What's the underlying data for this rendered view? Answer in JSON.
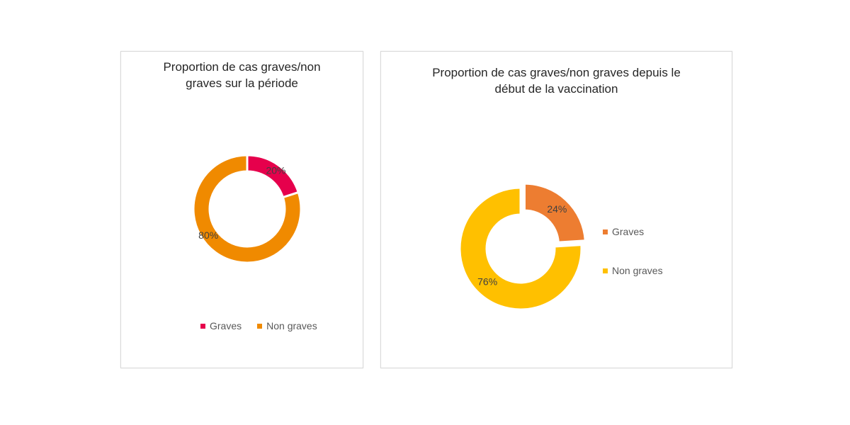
{
  "chart_data": [
    {
      "type": "pie",
      "variant": "donut",
      "title": "Proportion de cas graves/non\ngraves sur la période",
      "categories": [
        "Graves",
        "Non graves"
      ],
      "values": [
        20,
        80
      ],
      "data_labels": [
        "20%",
        "80%"
      ],
      "colors": [
        "#e6004c",
        "#f08a00"
      ],
      "legend_position": "bottom"
    },
    {
      "type": "pie",
      "variant": "donut",
      "title": "Proportion de cas graves/non graves depuis le\ndébut de la vaccination",
      "categories": [
        "Graves",
        "Non graves"
      ],
      "values": [
        24,
        76
      ],
      "data_labels": [
        "24%",
        "76%"
      ],
      "colors": [
        "#ed7d31",
        "#ffc000"
      ],
      "exploded": "Graves",
      "legend_position": "right"
    }
  ]
}
